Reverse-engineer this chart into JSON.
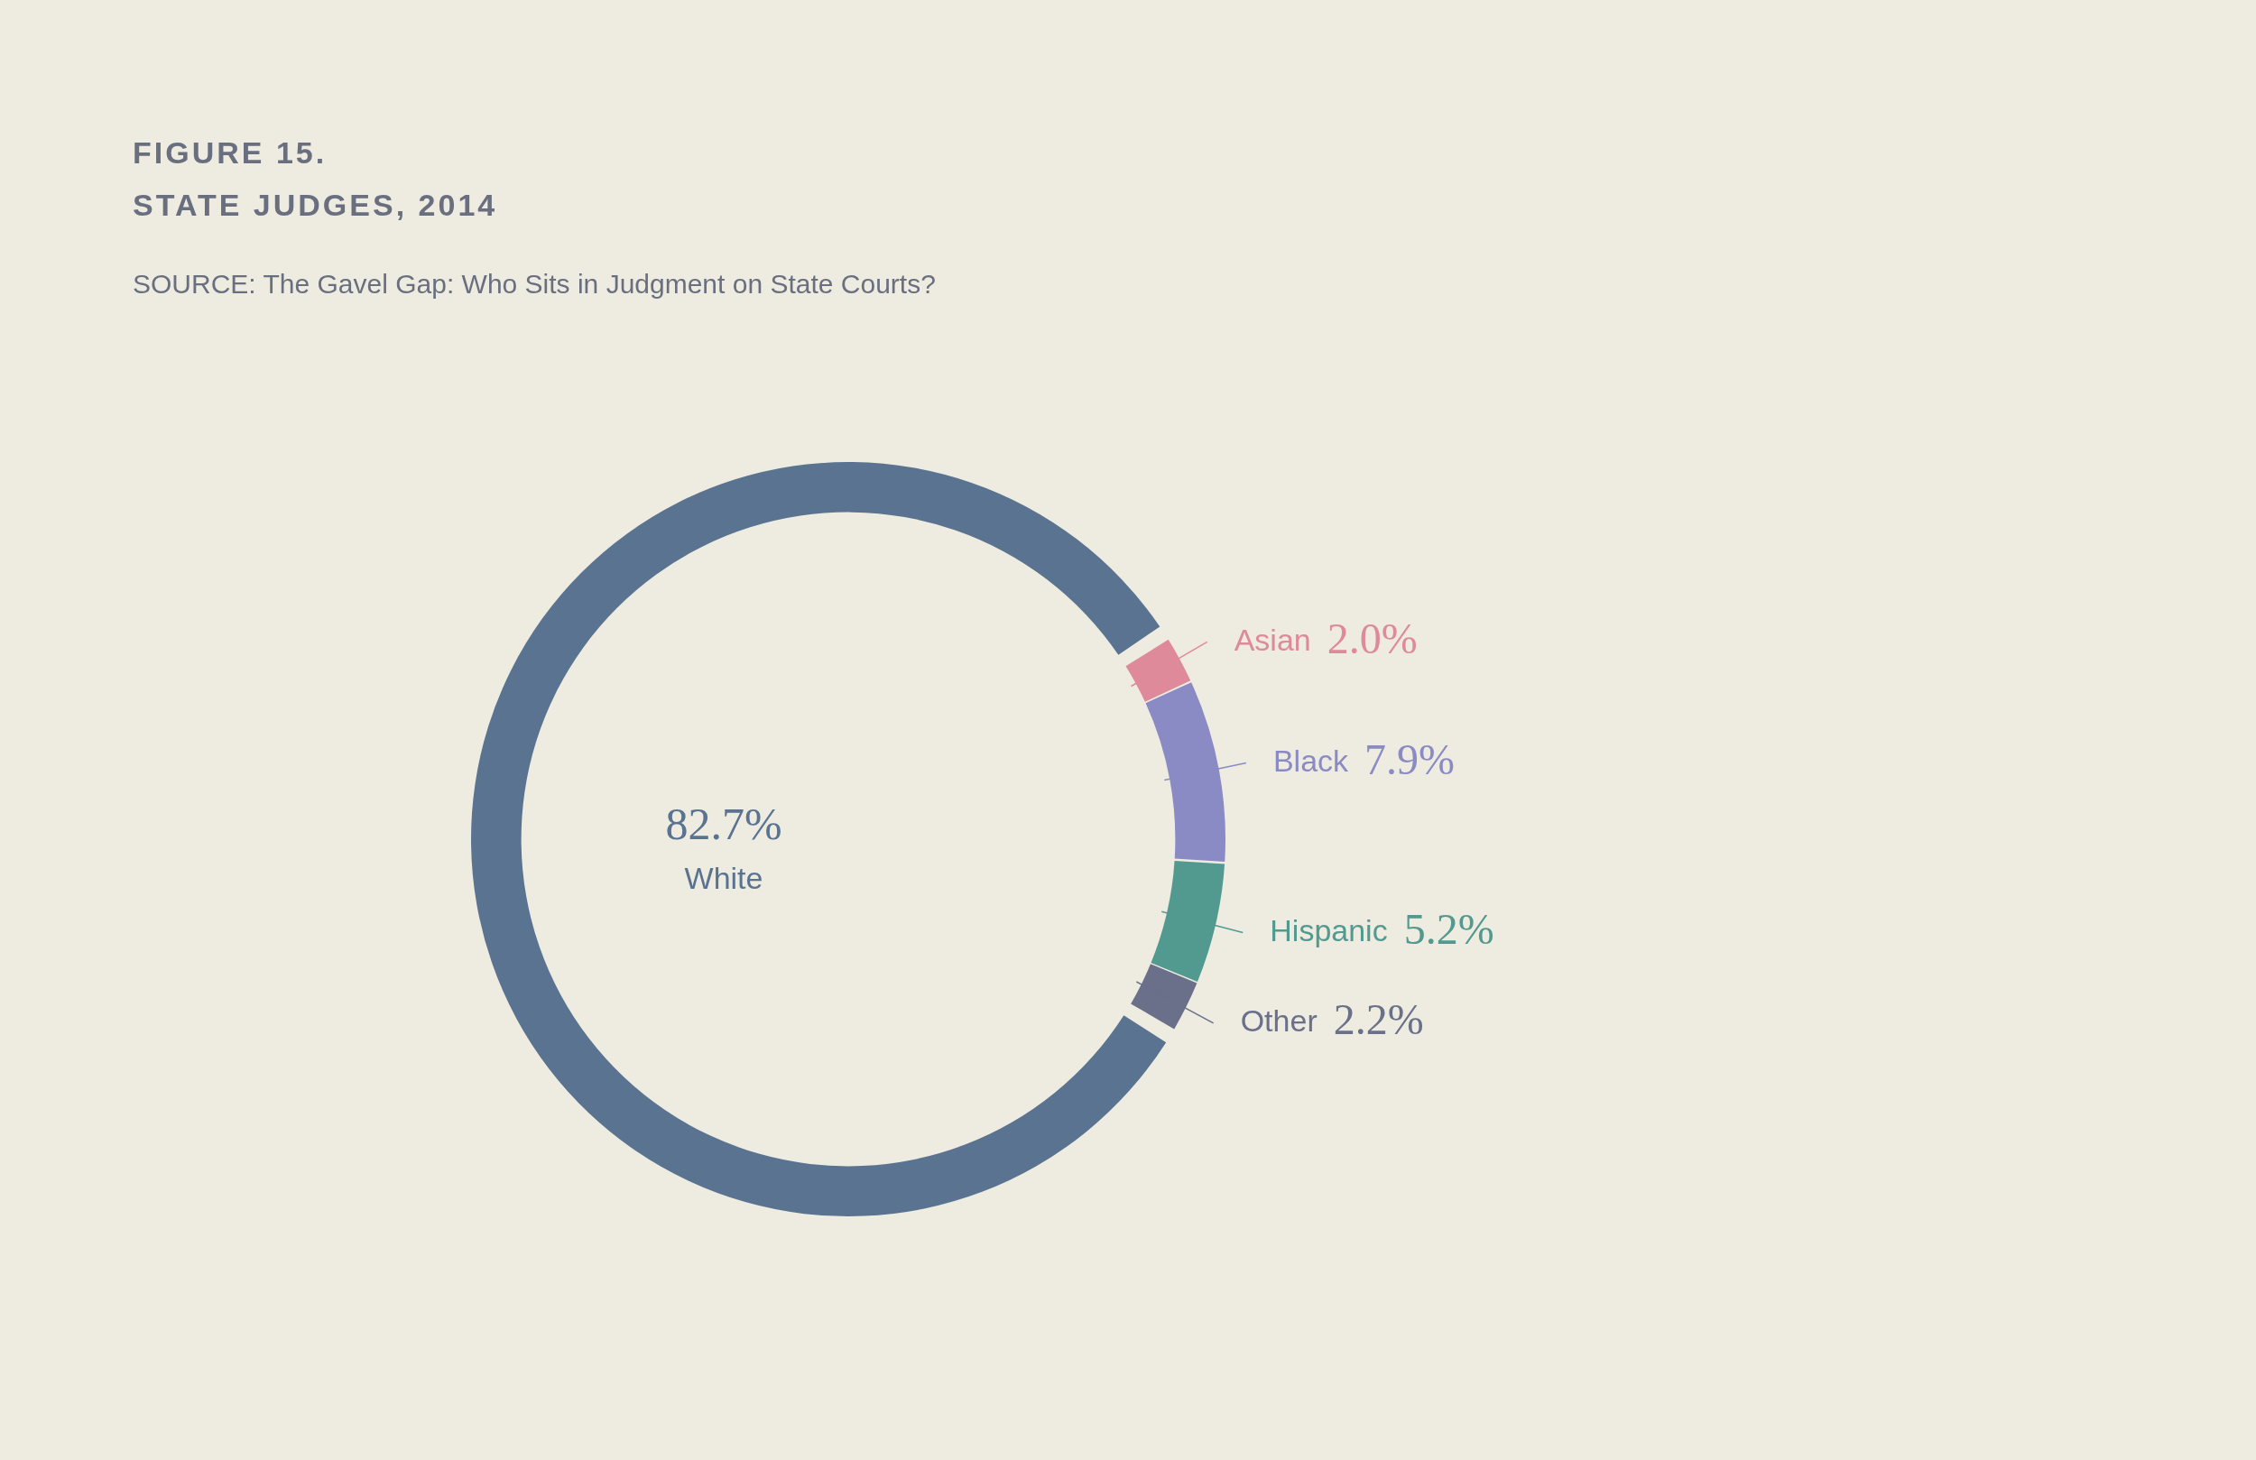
{
  "chart_data": {
    "type": "donut",
    "title": "FIGURE 15.",
    "subtitle": "STATE JUDGES, 2014",
    "annotations": [
      "SOURCE: The Gavel Gap: Who Sits in Judgment on State Courts?"
    ],
    "categories": [
      "Asian",
      "Black",
      "Hispanic",
      "Other",
      "White"
    ],
    "values": [
      2.0,
      7.9,
      5.2,
      2.2,
      82.7
    ],
    "value_labels": [
      "2.0%",
      "7.9%",
      "5.2%",
      "2.2%",
      "82.7%"
    ],
    "colors": [
      "#de8a9a",
      "#8a8ac4",
      "#529a90",
      "#6a6f8a",
      "#5a7390"
    ],
    "legend": false
  }
}
